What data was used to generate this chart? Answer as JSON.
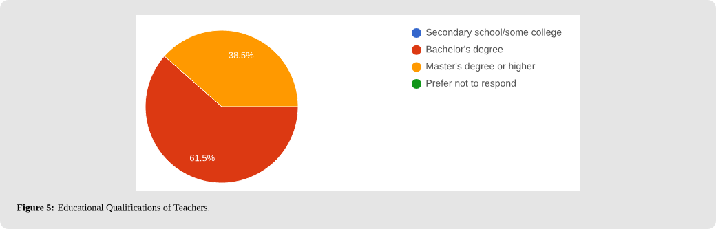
{
  "chart_data": {
    "type": "pie",
    "categories": [
      "Secondary school/some college",
      "Bachelor's degree",
      "Master's degree or higher",
      "Prefer not to respond"
    ],
    "values": [
      0,
      61.5,
      38.5,
      0
    ],
    "colors": [
      "#3366cc",
      "#dc3912",
      "#ff9900",
      "#109618"
    ],
    "value_labels": [
      null,
      "61.5%",
      "38.5%",
      null
    ],
    "legend": "top right",
    "annotations": [
      "**Figure 5:** Educational Qualifications of Teachers."
    ]
  }
}
